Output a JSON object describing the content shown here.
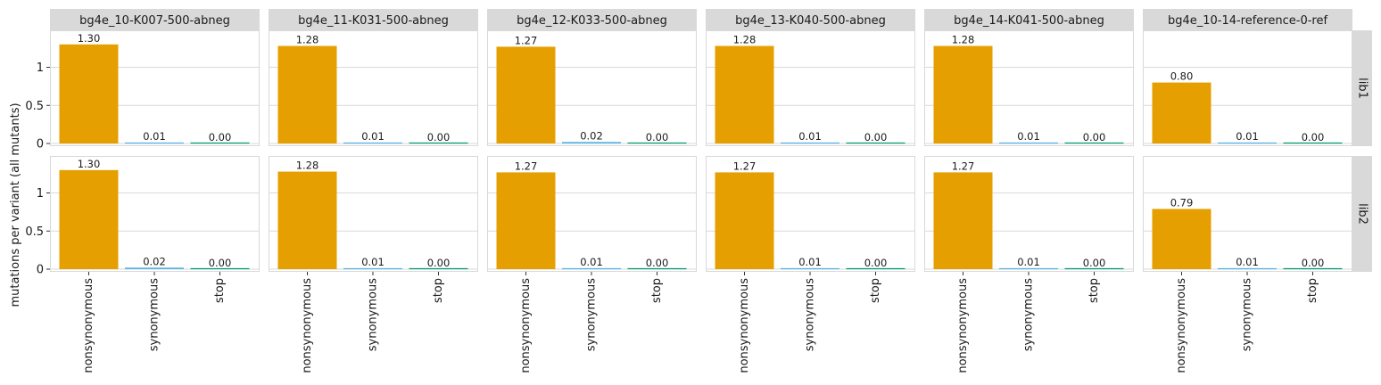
{
  "chart_data": {
    "type": "bar",
    "ylabel": "mutations per variant (all mutants)",
    "categories": [
      "nonsynonymous",
      "synonymous",
      "stop"
    ],
    "yticks": [
      0,
      0.5,
      1
    ],
    "ytick_labels": [
      "0",
      "0.5",
      "1"
    ],
    "ylim": [
      0,
      1.45
    ],
    "grid": true,
    "columns": [
      "bg4e_10-K007-500-abneg",
      "bg4e_11-K031-500-abneg",
      "bg4e_12-K033-500-abneg",
      "bg4e_13-K040-500-abneg",
      "bg4e_14-K041-500-abneg",
      "bg4e_10-14-reference-0-ref"
    ],
    "rows": [
      "lib1",
      "lib2"
    ],
    "colors": {
      "nonsynonymous": "#E69F00",
      "synonymous": "#56B4E9",
      "stop": "#009E73"
    },
    "panels": [
      {
        "row": "lib1",
        "column": "bg4e_10-K007-500-abneg",
        "values": [
          1.3,
          0.01,
          0.0
        ],
        "labels": [
          "1.30",
          "0.01",
          "0.00"
        ]
      },
      {
        "row": "lib1",
        "column": "bg4e_11-K031-500-abneg",
        "values": [
          1.28,
          0.01,
          0.0
        ],
        "labels": [
          "1.28",
          "0.01",
          "0.00"
        ]
      },
      {
        "row": "lib1",
        "column": "bg4e_12-K033-500-abneg",
        "values": [
          1.27,
          0.02,
          0.0
        ],
        "labels": [
          "1.27",
          "0.02",
          "0.00"
        ]
      },
      {
        "row": "lib1",
        "column": "bg4e_13-K040-500-abneg",
        "values": [
          1.28,
          0.01,
          0.0
        ],
        "labels": [
          "1.28",
          "0.01",
          "0.00"
        ]
      },
      {
        "row": "lib1",
        "column": "bg4e_14-K041-500-abneg",
        "values": [
          1.28,
          0.01,
          0.0
        ],
        "labels": [
          "1.28",
          "0.01",
          "0.00"
        ]
      },
      {
        "row": "lib1",
        "column": "bg4e_10-14-reference-0-ref",
        "values": [
          0.8,
          0.01,
          0.0
        ],
        "labels": [
          "0.80",
          "0.01",
          "0.00"
        ]
      },
      {
        "row": "lib2",
        "column": "bg4e_10-K007-500-abneg",
        "values": [
          1.3,
          0.02,
          0.0
        ],
        "labels": [
          "1.30",
          "0.02",
          "0.00"
        ]
      },
      {
        "row": "lib2",
        "column": "bg4e_11-K031-500-abneg",
        "values": [
          1.28,
          0.01,
          0.0
        ],
        "labels": [
          "1.28",
          "0.01",
          "0.00"
        ]
      },
      {
        "row": "lib2",
        "column": "bg4e_12-K033-500-abneg",
        "values": [
          1.27,
          0.01,
          0.0
        ],
        "labels": [
          "1.27",
          "0.01",
          "0.00"
        ]
      },
      {
        "row": "lib2",
        "column": "bg4e_13-K040-500-abneg",
        "values": [
          1.27,
          0.01,
          0.0
        ],
        "labels": [
          "1.27",
          "0.01",
          "0.00"
        ]
      },
      {
        "row": "lib2",
        "column": "bg4e_14-K041-500-abneg",
        "values": [
          1.27,
          0.01,
          0.0
        ],
        "labels": [
          "1.27",
          "0.01",
          "0.00"
        ]
      },
      {
        "row": "lib2",
        "column": "bg4e_10-14-reference-0-ref",
        "values": [
          0.79,
          0.01,
          0.0
        ],
        "labels": [
          "0.79",
          "0.01",
          "0.00"
        ]
      }
    ]
  }
}
